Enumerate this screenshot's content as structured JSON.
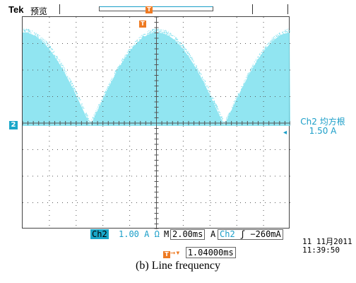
{
  "header": {
    "brand": "Tek",
    "mode": "预览",
    "trigger_flag": "T"
  },
  "screen": {
    "channel_marker": "2",
    "trace_color": "#7ee0ee",
    "grid_color": "#555555",
    "accent_color": "#1aa7c9",
    "trigger_color": "#ee7a22"
  },
  "measurement": {
    "label": "Ch2 均方根",
    "value": "1.50 A"
  },
  "status": {
    "channel": "Ch2",
    "scale": "1.00 A Ω",
    "timebase_prefix": "M",
    "timebase": "2.00ms",
    "trigger_prefix": "A",
    "trigger_channel": "Ch2",
    "trigger_edge": "ʃ",
    "trigger_level": "−260mA"
  },
  "datetime": {
    "date": "11 11月2011",
    "time": "11:39:50"
  },
  "horizontal_position": {
    "value": "1.04000ms"
  },
  "caption": "(b) Line frequency"
}
